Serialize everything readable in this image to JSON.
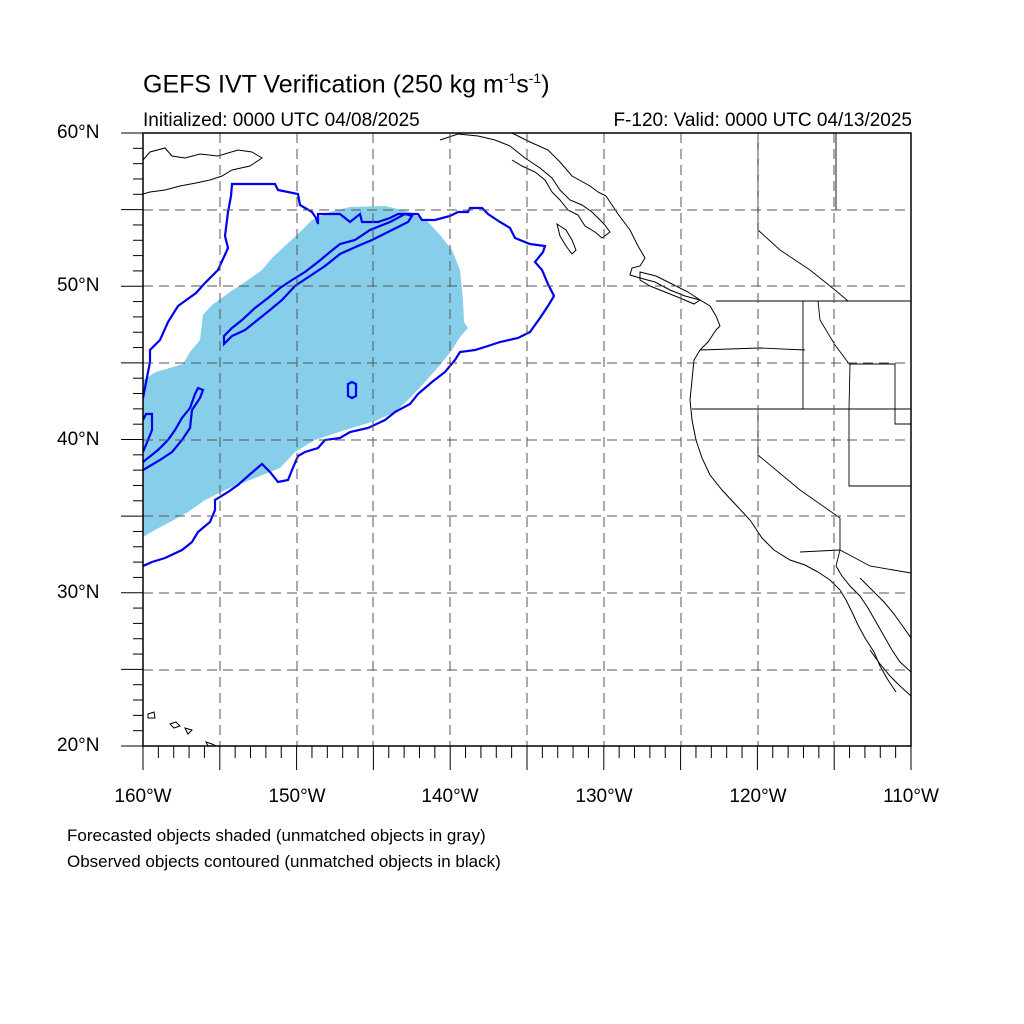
{
  "title": {
    "main": "GEFS IVT Verification (250 kg m",
    "sup1": "-1",
    "mid": "s",
    "sup2": "-1",
    "end": ")"
  },
  "initialized": "Initialized: 0000 UTC 04/08/2025",
  "valid": "F-120: Valid: 0000 UTC 04/13/2025",
  "lat_labels": [
    "60°N",
    "50°N",
    "40°N",
    "30°N",
    "20°N"
  ],
  "lon_labels": [
    "160°W",
    "150°W",
    "140°W",
    "130°W",
    "120°W",
    "110°W"
  ],
  "notes": {
    "forecast": "Forecasted objects shaded (unmatched objects in gray)",
    "observed": "Observed objects contoured (unmatched objects in black)"
  },
  "colors": {
    "forecast_fill": "#87ceeb",
    "observed_contour": "#0000ee",
    "coastline": "#000000",
    "gridline": "#555555"
  },
  "map_extent": {
    "lon": [
      -160,
      -110
    ],
    "lat": [
      20,
      60
    ]
  }
}
